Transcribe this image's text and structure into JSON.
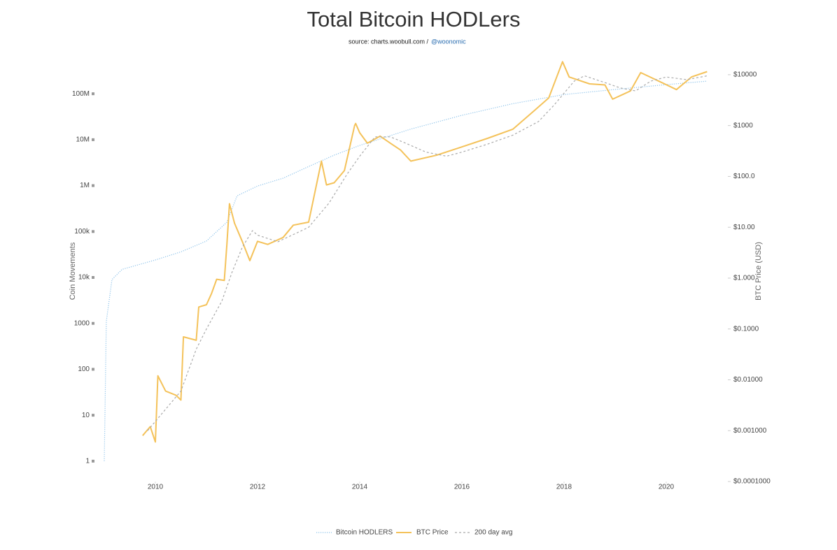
{
  "chart_data": {
    "type": "line",
    "title": "Total Bitcoin HODLers",
    "source_text": "source: charts.woobull.com /",
    "source_link": "@woonomic",
    "y_label": "Coin Movements",
    "y2_label": "BTC Price (USD)",
    "xlim": [
      2009,
      2021
    ],
    "xticks": [
      2010,
      2012,
      2014,
      2016,
      2018,
      2020
    ],
    "ylim": [
      0.36,
      560000000
    ],
    "y_log": true,
    "yticks": [
      1,
      10,
      100,
      1000,
      {
        "value": 10000,
        "label": "10k"
      },
      {
        "value": 100000,
        "label": "100k"
      },
      {
        "value": 1000000,
        "label": "1M"
      },
      {
        "value": 10000000,
        "label": "10M"
      },
      {
        "value": 100000000,
        "label": "100M"
      }
    ],
    "y2lim": [
      0.0001,
      20000
    ],
    "y2_log": true,
    "y2ticks": [
      {
        "value": 0.0001,
        "label": "$0.0001000"
      },
      {
        "value": 0.001,
        "label": "$0.001000"
      },
      {
        "value": 0.01,
        "label": "$0.01000"
      },
      {
        "value": 0.1,
        "label": "$0.1000"
      },
      {
        "value": 1,
        "label": "$1.000"
      },
      {
        "value": 10,
        "label": "$10.00"
      },
      {
        "value": 100,
        "label": "$100.0"
      },
      {
        "value": 1000,
        "label": "$1000"
      },
      {
        "value": 10000,
        "label": "$10000"
      }
    ],
    "series": [
      {
        "name": "Bitcoin HODLERS",
        "color": "#8ec3ea",
        "style": "dotted",
        "axis": "y",
        "x": [
          2009.0,
          2009.04,
          2009.15,
          2009.35,
          2010.0,
          2010.5,
          2011.0,
          2011.4,
          2011.6,
          2012.0,
          2012.5,
          2013.0,
          2013.5,
          2014.0,
          2015.0,
          2016.0,
          2017.0,
          2018.0,
          2019.0,
          2020.0,
          2020.8
        ],
        "values": [
          1,
          1100,
          9000,
          15000,
          24000,
          36000,
          62000,
          160000,
          600000,
          980000,
          1450000,
          2600000,
          4600000,
          7500000,
          17000000,
          34000000,
          61000000,
          96000000,
          124000000,
          158000000,
          188000000
        ]
      },
      {
        "name": "BTC Price",
        "color": "#f4c25a",
        "style": "solid",
        "axis": "y2",
        "x": [
          2009.75,
          2009.9,
          2010.0,
          2010.05,
          2010.2,
          2010.4,
          2010.5,
          2010.55,
          2010.8,
          2010.85,
          2011.0,
          2011.1,
          2011.2,
          2011.35,
          2011.4,
          2011.45,
          2011.55,
          2011.7,
          2011.85,
          2012.0,
          2012.2,
          2012.5,
          2012.7,
          2013.0,
          2013.25,
          2013.35,
          2013.5,
          2013.7,
          2013.9,
          2013.92,
          2014.0,
          2014.15,
          2014.4,
          2014.6,
          2014.8,
          2015.0,
          2015.5,
          2016.0,
          2016.5,
          2017.0,
          2017.4,
          2017.7,
          2017.97,
          2018.1,
          2018.5,
          2018.8,
          2018.95,
          2019.3,
          2019.5,
          2019.9,
          2020.2,
          2020.5,
          2020.8
        ],
        "values": [
          0.0008,
          0.0012,
          0.0006,
          0.012,
          0.006,
          0.005,
          0.004,
          0.07,
          0.06,
          0.27,
          0.3,
          0.5,
          0.95,
          0.9,
          4.6,
          29,
          12,
          5.3,
          2.2,
          5.3,
          4.6,
          6.3,
          11,
          12.6,
          200,
          68,
          75,
          130,
          1000,
          1100,
          720,
          450,
          620,
          450,
          330,
          200,
          260,
          380,
          560,
          850,
          1900,
          3500,
          18000,
          9000,
          6600,
          6300,
          3300,
          4800,
          11000,
          7100,
          5100,
          9100,
          11500
        ]
      },
      {
        "name": "200 day avg",
        "color": "#aaaaaa",
        "style": "dashed",
        "axis": "y2",
        "x": [
          2009.85,
          2010.1,
          2010.5,
          2010.8,
          2011.0,
          2011.3,
          2011.5,
          2011.7,
          2011.9,
          2012.0,
          2012.4,
          2012.8,
          2013.0,
          2013.4,
          2013.75,
          2014.0,
          2014.3,
          2014.6,
          2014.9,
          2015.3,
          2015.7,
          2016.0,
          2016.5,
          2017.0,
          2017.5,
          2017.8,
          2018.2,
          2018.4,
          2018.8,
          2019.1,
          2019.4,
          2019.7,
          2020.0,
          2020.4,
          2020.8
        ],
        "values": [
          0.001,
          0.002,
          0.006,
          0.04,
          0.1,
          0.35,
          1.3,
          4,
          8.6,
          7,
          5.2,
          8,
          10,
          30,
          110,
          250,
          600,
          600,
          450,
          300,
          250,
          300,
          430,
          650,
          1200,
          2500,
          7500,
          9500,
          7000,
          5500,
          4800,
          7500,
          9000,
          8000,
          9500
        ]
      }
    ]
  }
}
